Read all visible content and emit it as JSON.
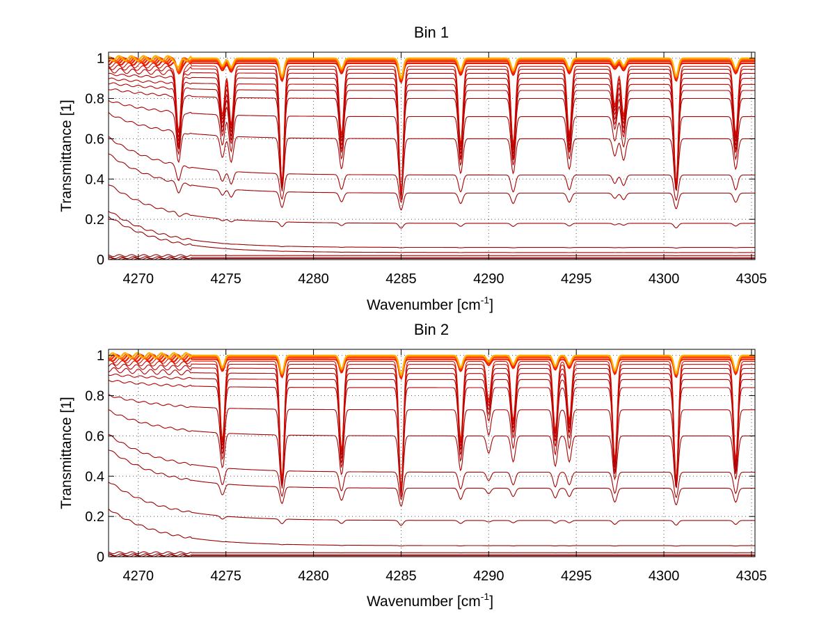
{
  "chart_data": [
    {
      "type": "line",
      "title": "Bin 1",
      "xlabel_main": "Wavenumber [cm",
      "xlabel_sup": "-1",
      "xlabel_end": "]",
      "ylabel": "Transmittance [1]",
      "xlim": [
        4268.3,
        4305.2
      ],
      "ylim": [
        0,
        1.03
      ],
      "xticks": [
        4270,
        4275,
        4280,
        4285,
        4290,
        4295,
        4300,
        4305
      ],
      "xtick_labels": [
        "4270",
        "4275",
        "4280",
        "4285",
        "4290",
        "4295",
        "4300",
        "4305"
      ],
      "yticks": [
        0,
        0.2,
        0.4,
        0.6,
        0.8,
        1
      ],
      "ytick_labels": [
        "0",
        "0.2",
        "0.4",
        "0.6",
        "0.8",
        "1"
      ],
      "grid": true,
      "series_baselines": [
        0.0,
        0.005,
        0.01,
        0.02,
        0.035,
        0.06,
        0.18,
        0.33,
        0.42,
        0.6,
        0.71,
        0.8,
        0.84,
        0.87,
        0.9,
        0.925,
        0.945,
        0.96,
        0.975,
        0.985,
        0.99,
        0.995,
        1.0
      ],
      "absorption_lines": [
        4272.3,
        4274.8,
        4275.3,
        4278.2,
        4281.6,
        4285.0,
        4288.4,
        4291.4,
        4294.6,
        4297.2,
        4297.7,
        4300.7,
        4304.1
      ],
      "line_strengths": [
        0.35,
        0.25,
        0.3,
        0.6,
        0.35,
        0.65,
        0.4,
        0.4,
        0.35,
        0.2,
        0.25,
        0.6,
        0.35
      ]
    },
    {
      "type": "line",
      "title": "Bin 2",
      "xlabel_main": "Wavenumber [cm",
      "xlabel_sup": "-1",
      "xlabel_end": "]",
      "ylabel": "Transmittance [1]",
      "xlim": [
        4268.3,
        4305.2
      ],
      "ylim": [
        0,
        1.03
      ],
      "xticks": [
        4270,
        4275,
        4280,
        4285,
        4290,
        4295,
        4300,
        4305
      ],
      "xtick_labels": [
        "4270",
        "4275",
        "4280",
        "4285",
        "4290",
        "4295",
        "4300",
        "4305"
      ],
      "yticks": [
        0,
        0.2,
        0.4,
        0.6,
        0.8,
        1
      ],
      "ytick_labels": [
        "0",
        "0.2",
        "0.4",
        "0.6",
        "0.8",
        "1"
      ],
      "grid": true,
      "series_baselines": [
        0.0,
        0.005,
        0.01,
        0.02,
        0.055,
        0.18,
        0.34,
        0.42,
        0.6,
        0.73,
        0.84,
        0.88,
        0.91,
        0.935,
        0.955,
        0.97,
        0.98,
        0.99,
        0.995,
        1.0
      ],
      "absorption_lines": [
        4274.8,
        4278.2,
        4281.6,
        4285.0,
        4288.4,
        4290.0,
        4291.4,
        4293.8,
        4294.6,
        4297.2,
        4300.7,
        4304.1
      ],
      "line_strengths": [
        0.4,
        0.6,
        0.45,
        0.65,
        0.4,
        0.2,
        0.3,
        0.35,
        0.3,
        0.5,
        0.6,
        0.5
      ]
    }
  ]
}
